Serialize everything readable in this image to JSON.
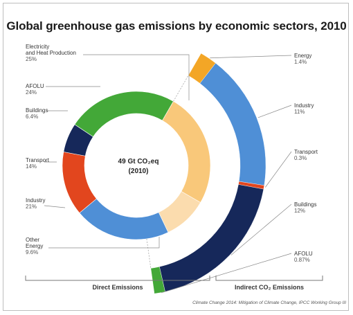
{
  "chart_data": {
    "type": "pie",
    "title": "Global greenhouse gas emissions by economic sectors, 2010",
    "center_label": {
      "line1": "49 Gt CO₂eq",
      "line2": "(2010)"
    },
    "direct": {
      "label": "Direct Emissions",
      "slices": [
        {
          "name": "Electricity and Heat Production",
          "pct_label": "25%",
          "value": 25,
          "color": "#f9c87a"
        },
        {
          "name": "Other Energy",
          "pct_label": "9.6%",
          "value": 9.6,
          "color": "#fbdcae"
        },
        {
          "name": "Industry",
          "pct_label": "21%",
          "value": 21,
          "color": "#4f8fd6"
        },
        {
          "name": "Transport",
          "pct_label": "14%",
          "value": 14,
          "color": "#e2461e"
        },
        {
          "name": "Buildings",
          "pct_label": "6.4%",
          "value": 6.4,
          "color": "#16285a"
        },
        {
          "name": "AFOLU",
          "pct_label": "24%",
          "value": 24,
          "color": "#43a838"
        }
      ]
    },
    "indirect": {
      "label": "Indirect CO₂ Emissions",
      "slices": [
        {
          "name": "Energy",
          "pct_label": "1.4%",
          "value": 1.4,
          "color": "#f3a626"
        },
        {
          "name": "Industry",
          "pct_label": "11%",
          "value": 11,
          "color": "#4f8fd6"
        },
        {
          "name": "Transport",
          "pct_label": "0.3%",
          "value": 0.3,
          "color": "#e2461e"
        },
        {
          "name": "Buildings",
          "pct_label": "12%",
          "value": 12,
          "color": "#16285a"
        },
        {
          "name": "AFOLU",
          "pct_label": "0.87%",
          "value": 0.87,
          "color": "#43a838"
        }
      ]
    },
    "source": "Climate Change 2014: Mitigation of Climate Change, IPCC Working Group III"
  }
}
